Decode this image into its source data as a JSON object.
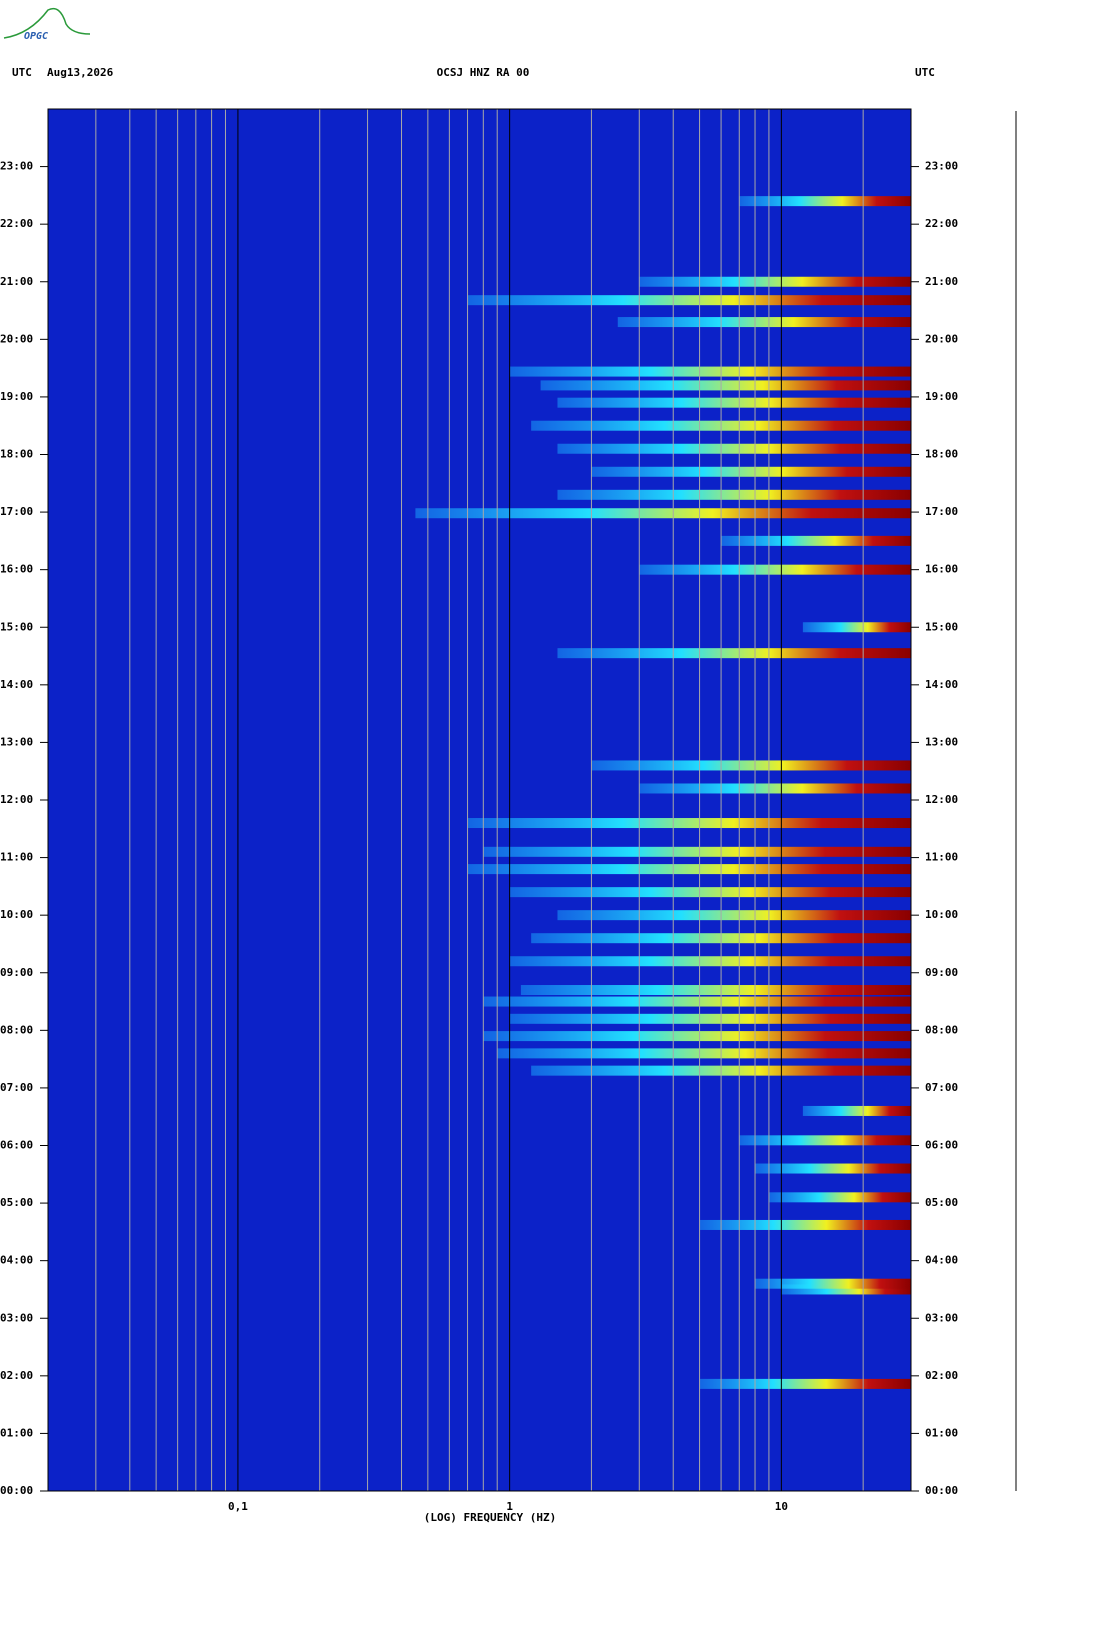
{
  "logo": "OPGC",
  "chart_data": {
    "type": "spectrogram",
    "title": "OCSJ HNZ RA 00",
    "left_label": "UTC",
    "date": "Aug13,2026",
    "right_label": "UTC",
    "xlabel": "(LOG) FREQUENCY (HZ)",
    "xscale": "log",
    "xlim": [
      0.02,
      30
    ],
    "xticks": [
      {
        "value": 0.1,
        "label": "0,1"
      },
      1,
      10
    ],
    "xgrid": [
      0.03,
      0.04,
      0.05,
      0.06,
      0.07,
      0.08,
      0.09,
      0.2,
      0.3,
      0.4,
      0.5,
      0.6,
      0.7,
      0.8,
      0.9,
      2,
      3,
      4,
      5,
      6,
      7,
      8,
      9,
      20
    ],
    "ylim": [
      0,
      24
    ],
    "yticks": [
      {
        "value": 0,
        "label": "00:00"
      },
      {
        "value": 1,
        "label": "01:00"
      },
      {
        "value": 2,
        "label": "02:00"
      },
      {
        "value": 3,
        "label": "03:00"
      },
      {
        "value": 4,
        "label": "04:00"
      },
      {
        "value": 5,
        "label": "05:00"
      },
      {
        "value": 6,
        "label": "06:00"
      },
      {
        "value": 7,
        "label": "07:00"
      },
      {
        "value": 8,
        "label": "08:00"
      },
      {
        "value": 9,
        "label": "09:00"
      },
      {
        "value": 10,
        "label": "10:00"
      },
      {
        "value": 11,
        "label": "11:00"
      },
      {
        "value": 12,
        "label": "12:00"
      },
      {
        "value": 13,
        "label": "13:00"
      },
      {
        "value": 14,
        "label": "14:00"
      },
      {
        "value": 15,
        "label": "15:00"
      },
      {
        "value": 16,
        "label": "16:00"
      },
      {
        "value": 17,
        "label": "17:00"
      },
      {
        "value": 18,
        "label": "18:00"
      },
      {
        "value": 19,
        "label": "19:00"
      },
      {
        "value": 20,
        "label": "20:00"
      },
      {
        "value": 21,
        "label": "21:00"
      },
      {
        "value": 22,
        "label": "22:00"
      },
      {
        "value": 23,
        "label": "23:00"
      }
    ],
    "background_color": "#0c22c8",
    "bursts": {
      "time": [
        1.86,
        3.5,
        3.6,
        4.62,
        5.1,
        5.6,
        6.09,
        6.6,
        7.3,
        7.6,
        7.9,
        8.2,
        8.5,
        8.7,
        9.2,
        9.6,
        10.0,
        10.4,
        10.8,
        11.1,
        11.6,
        12.2,
        12.6,
        14.55,
        15.0,
        16.0,
        16.5,
        16.98,
        17.3,
        17.7,
        18.1,
        18.5,
        18.9,
        19.2,
        19.44,
        20.3,
        20.68,
        21.0,
        22.4
      ],
      "fmin": [
        5,
        10,
        8,
        5,
        9,
        8,
        7,
        12,
        1.2,
        0.9,
        0.8,
        1.0,
        0.8,
        1.1,
        1.0,
        1.2,
        1.5,
        1.0,
        0.7,
        0.8,
        0.7,
        3,
        2,
        1.5,
        12,
        3,
        6,
        0.45,
        1.5,
        2,
        1.5,
        1.2,
        1.5,
        1.3,
        1.0,
        2.5,
        0.7,
        3,
        7
      ]
    }
  }
}
